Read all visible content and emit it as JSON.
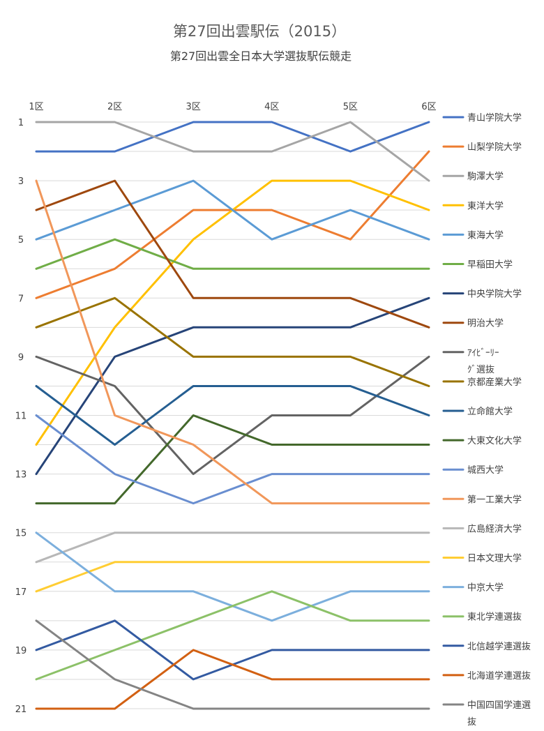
{
  "chart_data": {
    "type": "line",
    "title": "第27回出雲駅伝（2015）",
    "subtitle": "第27回出雲全日本大学選抜駅伝競走",
    "categories": [
      "1区",
      "2区",
      "3区",
      "4区",
      "5区",
      "6区"
    ],
    "y_ticks": [
      "1",
      "3",
      "5",
      "7",
      "9",
      "11",
      "13",
      "15",
      "17",
      "19",
      "21"
    ],
    "ylim": [
      1,
      21
    ],
    "y_inverted": true,
    "grid": "horizontal",
    "legend_position": "right",
    "series": [
      {
        "name": "青山学院大学",
        "color": "#4472c4",
        "values": [
          2,
          2,
          1,
          1,
          2,
          1
        ]
      },
      {
        "name": "山梨学院大学",
        "color": "#ed7d31",
        "values": [
          7,
          6,
          4,
          4,
          5,
          2
        ]
      },
      {
        "name": "駒澤大学",
        "color": "#a5a5a5",
        "values": [
          1,
          1,
          2,
          2,
          1,
          3
        ]
      },
      {
        "name": "東洋大学",
        "color": "#ffc000",
        "values": [
          12,
          8,
          5,
          3,
          3,
          4
        ]
      },
      {
        "name": "東海大学",
        "color": "#5b9bd5",
        "values": [
          5,
          4,
          3,
          5,
          4,
          5
        ]
      },
      {
        "name": "早稲田大学",
        "color": "#70ad47",
        "values": [
          6,
          5,
          6,
          6,
          6,
          6
        ]
      },
      {
        "name": "中央学院大学",
        "color": "#264478",
        "values": [
          13,
          9,
          8,
          8,
          8,
          7
        ]
      },
      {
        "name": "明治大学",
        "color": "#9e480e",
        "values": [
          4,
          3,
          7,
          7,
          7,
          8
        ]
      },
      {
        "name": "ｱｲﾋﾞｰﾘｰｸﾞ選抜",
        "color": "#636363",
        "values": [
          9,
          10,
          13,
          11,
          11,
          9
        ]
      },
      {
        "name": "京都産業大学",
        "color": "#997300",
        "values": [
          8,
          7,
          9,
          9,
          9,
          10
        ]
      },
      {
        "name": "立命館大学",
        "color": "#255e91",
        "values": [
          10,
          12,
          10,
          10,
          10,
          11
        ]
      },
      {
        "name": "大東文化大学",
        "color": "#43682b",
        "values": [
          14,
          14,
          11,
          12,
          12,
          12
        ]
      },
      {
        "name": "城西大学",
        "color": "#698ed0",
        "values": [
          11,
          13,
          14,
          13,
          13,
          13
        ]
      },
      {
        "name": "第一工業大学",
        "color": "#f1975a",
        "values": [
          3,
          11,
          12,
          14,
          14,
          14
        ]
      },
      {
        "name": "広島経済大学",
        "color": "#b7b7b7",
        "values": [
          16,
          15,
          15,
          15,
          15,
          15
        ]
      },
      {
        "name": "日本文理大学",
        "color": "#ffcd33",
        "values": [
          17,
          16,
          16,
          16,
          16,
          16
        ]
      },
      {
        "name": "中京大学",
        "color": "#7cafdd",
        "values": [
          15,
          17,
          17,
          18,
          17,
          17
        ]
      },
      {
        "name": "東北学連選抜",
        "color": "#8cc168",
        "values": [
          20,
          19,
          18,
          17,
          18,
          18
        ]
      },
      {
        "name": "北信越学連選抜",
        "color": "#335aa1",
        "values": [
          19,
          18,
          20,
          19,
          19,
          19
        ]
      },
      {
        "name": "北海道学連選抜",
        "color": "#d26012",
        "values": [
          21,
          21,
          19,
          20,
          20,
          20
        ]
      },
      {
        "name": "中国四国学連選抜",
        "color": "#848484",
        "values": [
          18,
          20,
          21,
          21,
          21,
          21
        ]
      }
    ]
  }
}
